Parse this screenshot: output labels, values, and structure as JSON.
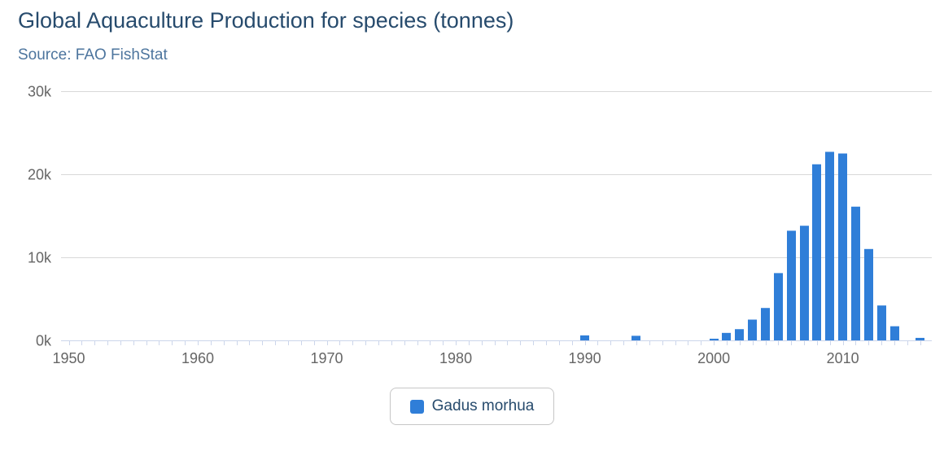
{
  "header": {
    "title": "Global Aquaculture Production for species (tonnes)",
    "subtitle": "Source: FAO FishStat"
  },
  "legend": {
    "items": [
      {
        "label": "Gadus morhua",
        "color": "#2f7ed8"
      }
    ]
  },
  "chart_data": {
    "type": "bar",
    "title": "Global Aquaculture Production for species (tonnes)",
    "subtitle": "Source: FAO FishStat",
    "xlabel": "",
    "ylabel": "",
    "xlim": [
      1949.4,
      2016.9
    ],
    "ylim": [
      0,
      30000
    ],
    "grid": "horizontal",
    "legend_position": "bottom-center",
    "y_ticks": [
      {
        "value": 0,
        "label": "0k"
      },
      {
        "value": 10000,
        "label": "10k"
      },
      {
        "value": 20000,
        "label": "20k"
      },
      {
        "value": 30000,
        "label": "30k"
      }
    ],
    "x_ticks_major": [
      1950,
      1960,
      1970,
      1980,
      1990,
      2000,
      2010
    ],
    "x_minor_tick_start": 1950,
    "x_minor_tick_end": 2016,
    "series": [
      {
        "name": "Gadus morhua",
        "color": "#2f7ed8",
        "points": [
          {
            "x": 1990,
            "y": 600
          },
          {
            "x": 1994,
            "y": 550
          },
          {
            "x": 2000,
            "y": 200
          },
          {
            "x": 2001,
            "y": 900
          },
          {
            "x": 2002,
            "y": 1350
          },
          {
            "x": 2003,
            "y": 2500
          },
          {
            "x": 2004,
            "y": 3900
          },
          {
            "x": 2005,
            "y": 8100
          },
          {
            "x": 2006,
            "y": 13200
          },
          {
            "x": 2007,
            "y": 13800
          },
          {
            "x": 2008,
            "y": 21200
          },
          {
            "x": 2009,
            "y": 22700
          },
          {
            "x": 2010,
            "y": 22500
          },
          {
            "x": 2011,
            "y": 16100
          },
          {
            "x": 2012,
            "y": 11000
          },
          {
            "x": 2013,
            "y": 4200
          },
          {
            "x": 2014,
            "y": 1700
          },
          {
            "x": 2016,
            "y": 300
          }
        ]
      }
    ]
  }
}
